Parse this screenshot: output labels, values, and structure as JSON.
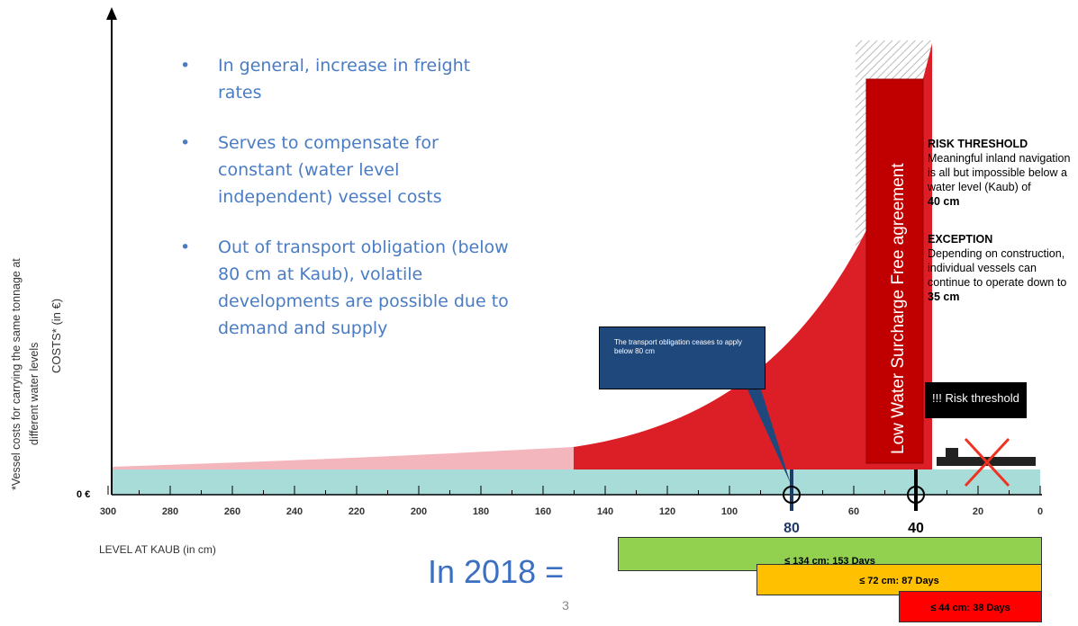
{
  "bullets": [
    "In general, increase in freight rates",
    "Serves to compensate for constant (water level independent) vessel costs",
    "Out of transport obligation (below 80 cm at Kaub), volatile developments are possible due to demand and supply"
  ],
  "y_axis_label": "COSTS* (in €)",
  "footnote": [
    "*Vessel costs for carrying the same tonnage at",
    "different water levels"
  ],
  "zero_label": "0 €",
  "x_axis": {
    "title": "LEVEL AT KAUB (in cm)",
    "ticks": [
      300,
      280,
      260,
      240,
      220,
      200,
      180,
      160,
      140,
      120,
      100,
      60,
      20,
      0
    ],
    "markers": [
      80,
      40
    ]
  },
  "agreement": "Low Water Surcharge Free agreement",
  "callout": "The transport obligation ceases to apply below 80 cm",
  "risk_box": "!!! Risk threshold",
  "risk": {
    "heading": "RISK THRESHOLD",
    "text": "Meaningful inland navigation is all but impossible below a water level (Kaub) of",
    "bold": "40 cm"
  },
  "exception": {
    "heading": "EXCEPTION",
    "text": "Depending on construction, individual vessels can continue to operate down to",
    "bold": "35 cm"
  },
  "year_label": "In 2018 =",
  "days": [
    "≤ 134 cm: 153 Days",
    "≤ 72 cm: 87 Days",
    "≤ 44 cm: 38 Days"
  ],
  "page_number": "3"
}
